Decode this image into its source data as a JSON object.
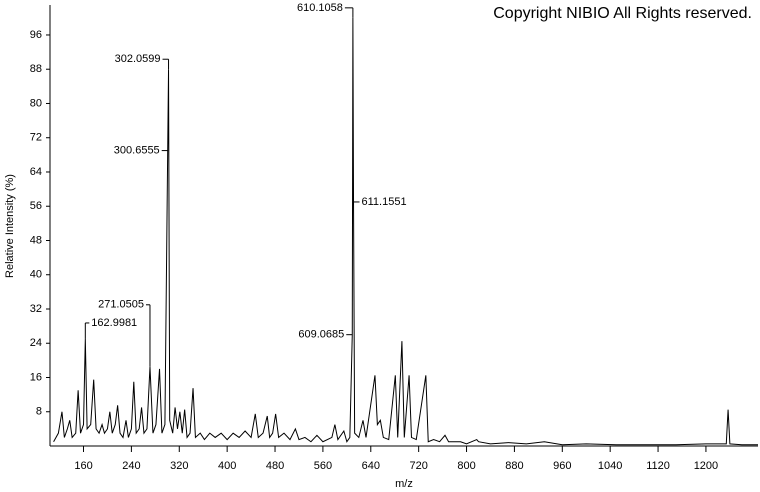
{
  "chart_data": {
    "type": "line",
    "title": "Copyright NIBIO All Rights reserved.",
    "x_label": "m/z",
    "y_label": "Relative Intensity (%)",
    "xlim": [
      104,
      1287
    ],
    "ylim": [
      0,
      103
    ],
    "xticks": [
      160,
      240,
      320,
      400,
      480,
      560,
      640,
      720,
      800,
      880,
      960,
      1040,
      1120,
      1200
    ],
    "yticks": [
      8,
      16,
      24,
      32,
      40,
      48,
      56,
      64,
      72,
      80,
      88,
      96
    ],
    "color": "#000000",
    "x": [
      110,
      118,
      124,
      128,
      133,
      137,
      141,
      147,
      151,
      155,
      160,
      162.9981,
      166,
      172,
      177,
      181,
      186,
      191,
      195,
      200,
      204,
      208,
      213,
      217,
      221,
      226,
      231,
      235,
      240,
      244,
      248,
      253,
      257,
      261,
      266,
      271.0505,
      276,
      281,
      287,
      291,
      296,
      300.6555,
      302.0599,
      304,
      309,
      313,
      317,
      321,
      325,
      329,
      333,
      338,
      343,
      347,
      355,
      362,
      371,
      380,
      390,
      400,
      410,
      420,
      430,
      440,
      447,
      452,
      460,
      467,
      471,
      476,
      481,
      486,
      495,
      505,
      514,
      520,
      530,
      540,
      550,
      560,
      575,
      580,
      585,
      595,
      600,
      605,
      609.0685,
      610.1058,
      611.1551,
      613,
      620,
      627,
      632,
      647,
      651,
      656,
      661,
      670,
      681,
      685,
      692,
      696,
      704,
      708,
      716,
      732,
      736,
      745,
      755,
      764,
      770,
      790,
      800,
      817,
      820,
      840,
      870,
      900,
      930,
      960,
      1000,
      1050,
      1100,
      1150,
      1200,
      1234,
      1237,
      1240,
      1260,
      1287
    ],
    "values": [
      1,
      3,
      8,
      2,
      4,
      6,
      2,
      3,
      13,
      3,
      5,
      25,
      4,
      5,
      15.5,
      4,
      3,
      5,
      3,
      4,
      8,
      3,
      5,
      9.5,
      3,
      2,
      6,
      2,
      4,
      15,
      3,
      4,
      9,
      3,
      4,
      18.5,
      3,
      5,
      18,
      3,
      5,
      69,
      88,
      6,
      3,
      9,
      4,
      8,
      3,
      8.5,
      2,
      3,
      13.5,
      2,
      3,
      1.5,
      3,
      2,
      3,
      1.5,
      3,
      2,
      3.5,
      2,
      7.5,
      2,
      3,
      7,
      2,
      3,
      7.5,
      2,
      3,
      1.5,
      4,
      1.5,
      2,
      1,
      2.5,
      1,
      2,
      5,
      1.5,
      3.5,
      1,
      2,
      26,
      100,
      57,
      3,
      2,
      6,
      2,
      16.5,
      5,
      6,
      2,
      1.5,
      16.5,
      2,
      24.5,
      2,
      16.5,
      2,
      1.5,
      16.5,
      1,
      1.5,
      1,
      2.5,
      1,
      1,
      0.5,
      1.5,
      1,
      0.5,
      0.8,
      0.5,
      1,
      0.3,
      0.5,
      0.3,
      0.3,
      0.3,
      0.5,
      0.5,
      8.5,
      0.5,
      0.3,
      0.3
    ],
    "peak_labels": [
      "610.1058",
      "302.0599",
      "300.6555",
      "271.0505",
      "162.9981",
      "611.1551",
      "609.0685"
    ]
  }
}
